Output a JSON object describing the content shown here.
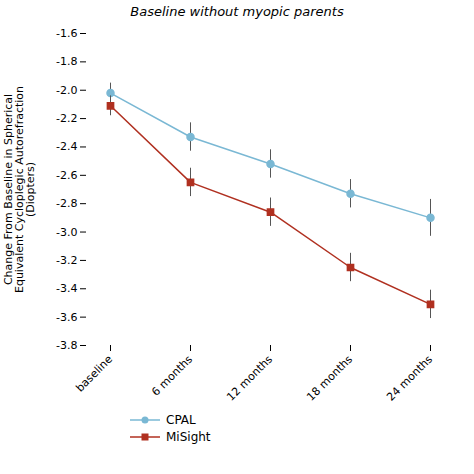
{
  "chart_data": {
    "type": "line",
    "title": "Baseline without myopic parents",
    "ylabel": "Change From Baseline in Spherical\nEquivalent Cycloplegic Autorefraction\n(Diopters)",
    "categories": [
      "baseline",
      "6 months",
      "12 months",
      "18 months",
      "24 months"
    ],
    "series": [
      {
        "name": "CPAL",
        "color": "#7ab8d4",
        "marker": "circle",
        "values": [
          -2.02,
          -2.33,
          -2.52,
          -2.73,
          -2.9
        ],
        "errors": [
          0.07,
          0.1,
          0.1,
          0.1,
          0.13
        ]
      },
      {
        "name": "MiSight",
        "color": "#b03020",
        "marker": "square",
        "values": [
          -2.11,
          -2.65,
          -2.86,
          -3.25,
          -3.51
        ],
        "errors": [
          0.07,
          0.1,
          0.1,
          0.1,
          0.1
        ]
      }
    ],
    "ylim": [
      -3.8,
      -1.6
    ],
    "yticks": [
      -3.8,
      -3.6,
      -3.4,
      -3.2,
      {
        "value": -3,
        "label": "-3.0"
      },
      -2.8,
      -2.6,
      -2.4,
      -2.2,
      {
        "value": -2,
        "label": "-2.0"
      },
      -1.8,
      -1.6
    ],
    "grid": false,
    "legend": "bottom"
  }
}
